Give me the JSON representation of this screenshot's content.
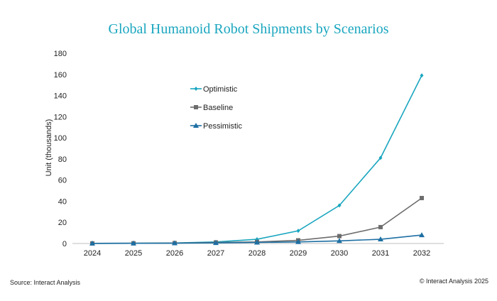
{
  "chart_data": {
    "type": "line",
    "title": "Global Humanoid Robot Shipments by Scenarios",
    "xlabel": "",
    "ylabel": "Unit (thousands)",
    "categories": [
      "2024",
      "2025",
      "2026",
      "2027",
      "2028",
      "2029",
      "2030",
      "2031",
      "2032"
    ],
    "ylim": [
      0,
      180
    ],
    "yticks": [
      0,
      20,
      40,
      60,
      80,
      100,
      120,
      140,
      160,
      180
    ],
    "grid": false,
    "legend_position": "upper-left inside plot",
    "series": [
      {
        "name": "Optimistic",
        "color": "#1aa6bf",
        "marker": "diamond",
        "values": [
          0.1,
          0.2,
          0.5,
          1.5,
          4,
          12,
          36,
          81,
          159
        ]
      },
      {
        "name": "Baseline",
        "color": "#6d6d6d",
        "marker": "square",
        "values": [
          0.1,
          0.2,
          0.4,
          1,
          1.5,
          3,
          7,
          15.5,
          43
        ]
      },
      {
        "name": "Pessimistic",
        "color": "#1e6fa3",
        "marker": "triangle",
        "values": [
          0.1,
          0.2,
          0.3,
          0.6,
          1,
          1.5,
          2.5,
          4,
          8
        ]
      }
    ]
  },
  "footer": {
    "source": "Source: Interact Analysis",
    "copyright": "© Interact Analysis 2025"
  }
}
